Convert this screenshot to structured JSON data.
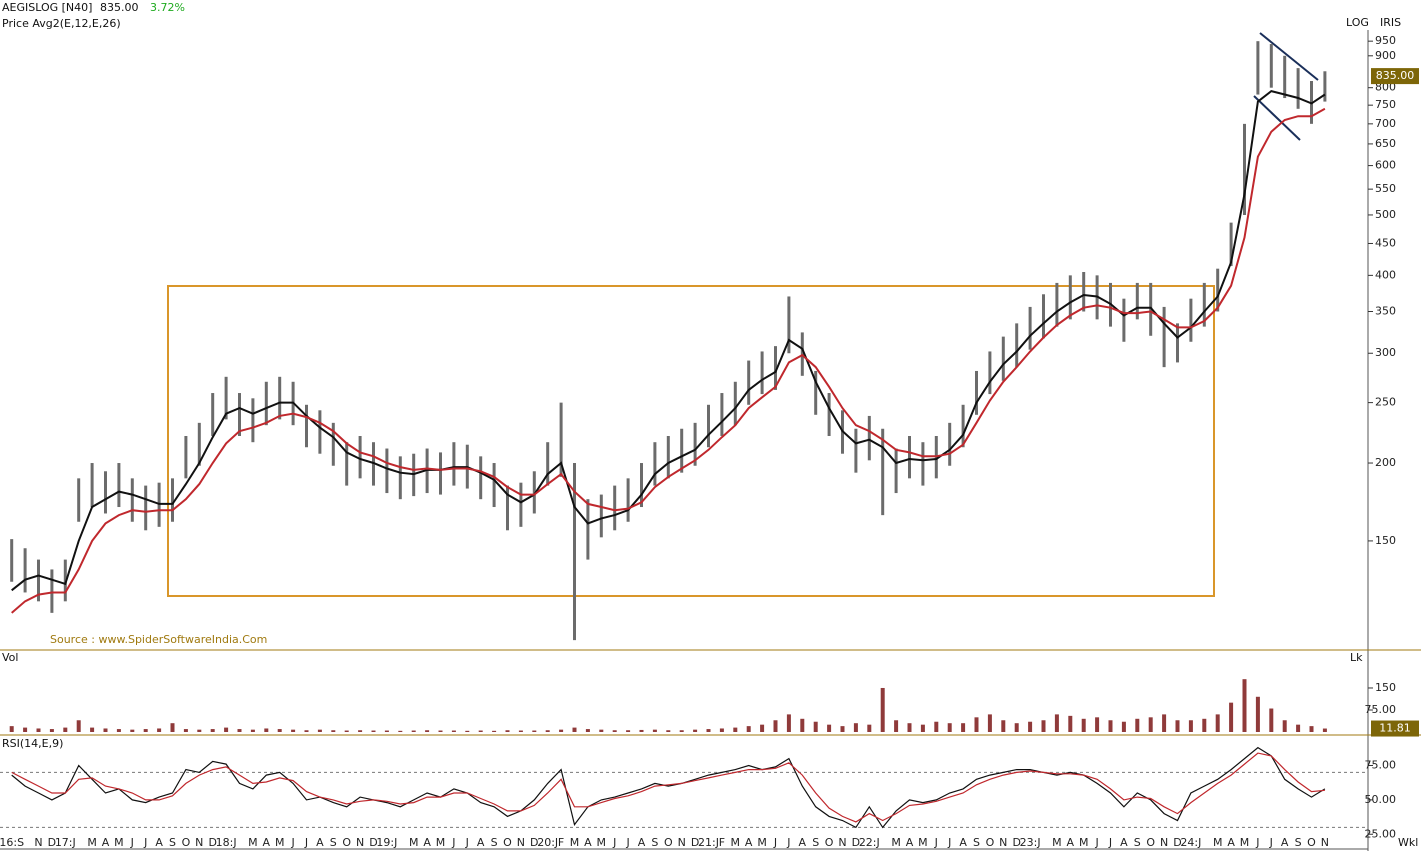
{
  "header": {
    "symbol": "AEGISLOG [N40]",
    "change": "3.72%",
    "indicator": "Price  Avg2(E,12,E,26)",
    "scale": "LOG",
    "tool": "IRIS",
    "source": "Source : www.SpiderSoftwareIndia.Com",
    "period": "Wkl"
  },
  "chart_data": [
    {
      "type": "hilo",
      "title": "Price",
      "last_price": {
        "value": 835,
        "label": "835.00"
      },
      "log_scale": true,
      "bar_color": "#6b6b6b",
      "categories": [
        "16:S",
        null,
        "N",
        "D",
        "17:J",
        null,
        "M",
        "A",
        "M",
        "J",
        "J",
        "A",
        "S",
        "O",
        "N",
        "D",
        "18:J",
        null,
        "M",
        "A",
        "M",
        "J",
        "J",
        "A",
        "S",
        "O",
        "N",
        "D",
        "19:J",
        null,
        "M",
        "A",
        "M",
        "J",
        "J",
        "A",
        "S",
        "O",
        "N",
        "D",
        "20:J",
        "F",
        "M",
        "A",
        "M",
        "J",
        "J",
        "A",
        "S",
        "O",
        "N",
        "D",
        "21:J",
        "F",
        "M",
        "A",
        "M",
        "J",
        "J",
        "A",
        "S",
        "O",
        "N",
        "D",
        "22:J",
        null,
        "M",
        "A",
        "M",
        "J",
        "J",
        "A",
        "S",
        "O",
        "N",
        "D",
        "23:J",
        null,
        "M",
        "A",
        "M",
        "J",
        "J",
        "A",
        "S",
        "O",
        "N",
        "D",
        "24:J",
        null,
        "M",
        "A",
        "M",
        "J",
        "J",
        "A",
        "S",
        "O",
        "N"
      ],
      "high": [
        151,
        146,
        140,
        135,
        140,
        189,
        200,
        194,
        200,
        189,
        184,
        186,
        189,
        221,
        232,
        259,
        275,
        259,
        254,
        270,
        275,
        270,
        248,
        243,
        232,
        216,
        221,
        216,
        211,
        205,
        207,
        211,
        208,
        216,
        214,
        205,
        200,
        184,
        186,
        194,
        216,
        250,
        200,
        175,
        178,
        184,
        189,
        200,
        216,
        221,
        227,
        232,
        248,
        259,
        270,
        292,
        302,
        308,
        370,
        324,
        281,
        259,
        243,
        227,
        238,
        227,
        211,
        221,
        216,
        221,
        232,
        248,
        281,
        302,
        319,
        335,
        356,
        373,
        389,
        400,
        405,
        400,
        389,
        367,
        389,
        389,
        356,
        335,
        367,
        389,
        410,
        486,
        700,
        950,
        940,
        900,
        860,
        820,
        850
      ],
      "low": [
        129,
        124,
        120,
        115,
        120,
        161,
        170,
        166,
        170,
        161,
        156,
        158,
        161,
        189,
        198,
        221,
        235,
        221,
        216,
        230,
        235,
        230,
        212,
        207,
        198,
        184,
        189,
        184,
        179,
        175,
        177,
        179,
        178,
        184,
        182,
        175,
        170,
        156,
        158,
        166,
        184,
        190,
        104,
        140,
        152,
        156,
        161,
        170,
        184,
        189,
        193,
        198,
        212,
        221,
        230,
        248,
        258,
        262,
        300,
        276,
        239,
        221,
        207,
        193,
        202,
        165,
        179,
        189,
        184,
        189,
        198,
        212,
        239,
        258,
        271,
        285,
        304,
        317,
        331,
        340,
        350,
        340,
        331,
        313,
        340,
        320,
        285,
        290,
        313,
        331,
        350,
        414,
        500,
        780,
        800,
        770,
        740,
        700,
        760
      ],
      "averages": [
        {
          "color": "#111111",
          "values": [
            125,
            130,
            132,
            130,
            128,
            150,
            170,
            175,
            180,
            178,
            175,
            172,
            172,
            185,
            200,
            220,
            240,
            245,
            240,
            245,
            250,
            250,
            238,
            228,
            220,
            208,
            203,
            200,
            196,
            193,
            192,
            195,
            195,
            197,
            197,
            193,
            188,
            178,
            173,
            178,
            192,
            200,
            170,
            160,
            163,
            165,
            168,
            178,
            192,
            200,
            205,
            210,
            222,
            233,
            245,
            262,
            272,
            280,
            315,
            305,
            270,
            245,
            225,
            215,
            218,
            212,
            200,
            203,
            202,
            203,
            210,
            222,
            250,
            270,
            288,
            302,
            320,
            335,
            350,
            362,
            372,
            370,
            360,
            345,
            355,
            355,
            335,
            318,
            330,
            350,
            370,
            420,
            540,
            760,
            790,
            780,
            770,
            755,
            780
          ]
        },
        {
          "color": "#c0282d",
          "values": [
            115,
            120,
            123,
            124,
            124,
            135,
            150,
            160,
            165,
            168,
            167,
            168,
            168,
            175,
            185,
            200,
            215,
            225,
            228,
            232,
            238,
            240,
            237,
            232,
            225,
            215,
            208,
            205,
            200,
            197,
            195,
            196,
            195,
            196,
            196,
            194,
            190,
            183,
            178,
            178,
            185,
            192,
            180,
            172,
            170,
            168,
            169,
            173,
            183,
            190,
            196,
            202,
            210,
            220,
            230,
            245,
            255,
            265,
            290,
            298,
            285,
            265,
            245,
            230,
            225,
            218,
            210,
            208,
            205,
            205,
            207,
            214,
            232,
            252,
            270,
            285,
            302,
            318,
            333,
            345,
            355,
            358,
            355,
            348,
            348,
            350,
            340,
            330,
            330,
            338,
            355,
            385,
            460,
            620,
            680,
            710,
            720,
            720,
            740
          ]
        }
      ],
      "ylim": [
        101,
        990
      ],
      "yticks": [
        150,
        200,
        250,
        300,
        350,
        400,
        450,
        500,
        550,
        600,
        650,
        700,
        750,
        800,
        900,
        950
      ]
    },
    {
      "type": "bar",
      "title": "Vol",
      "unit": "Lk",
      "color": "#8f3a3a",
      "values": [
        20,
        15,
        12,
        10,
        15,
        40,
        15,
        12,
        10,
        8,
        10,
        12,
        30,
        10,
        8,
        10,
        15,
        10,
        8,
        12,
        10,
        8,
        6,
        8,
        6,
        5,
        6,
        5,
        5,
        4,
        5,
        6,
        5,
        5,
        4,
        5,
        4,
        6,
        5,
        5,
        6,
        8,
        15,
        10,
        8,
        6,
        6,
        7,
        8,
        6,
        6,
        8,
        10,
        12,
        15,
        20,
        25,
        40,
        60,
        45,
        35,
        25,
        20,
        30,
        25,
        150,
        40,
        30,
        25,
        35,
        30,
        30,
        50,
        60,
        40,
        30,
        35,
        40,
        60,
        55,
        45,
        50,
        40,
        35,
        45,
        50,
        60,
        40,
        40,
        45,
        60,
        100,
        180,
        120,
        80,
        40,
        25,
        20,
        11.81
      ],
      "ylim": [
        0,
        276
      ],
      "yticks": [
        {
          "value": 75,
          "label": "75.00"
        },
        150
      ]
    },
    {
      "type": "line",
      "title": "RSI(14,E,9)",
      "series": [
        {
          "color": "#111111",
          "values": [
            68,
            60,
            55,
            50,
            55,
            75,
            65,
            55,
            58,
            50,
            48,
            52,
            55,
            72,
            70,
            78,
            76,
            62,
            58,
            68,
            70,
            62,
            50,
            52,
            48,
            45,
            52,
            50,
            48,
            45,
            50,
            55,
            52,
            58,
            55,
            48,
            45,
            38,
            42,
            50,
            62,
            72,
            32,
            45,
            50,
            52,
            55,
            58,
            62,
            60,
            62,
            65,
            68,
            70,
            72,
            75,
            72,
            74,
            80,
            60,
            45,
            38,
            35,
            30,
            45,
            30,
            42,
            50,
            48,
            50,
            55,
            58,
            65,
            68,
            70,
            72,
            72,
            70,
            68,
            70,
            68,
            62,
            55,
            45,
            55,
            50,
            40,
            35,
            55,
            60,
            65,
            72,
            80,
            88,
            82,
            65,
            58,
            52,
            58
          ]
        },
        {
          "color": "#c0282d",
          "values": [
            70,
            65,
            60,
            55,
            55,
            65,
            66,
            60,
            58,
            55,
            50,
            50,
            53,
            62,
            68,
            72,
            74,
            68,
            62,
            63,
            66,
            64,
            56,
            52,
            50,
            47,
            49,
            50,
            49,
            47,
            48,
            52,
            52,
            55,
            55,
            51,
            47,
            42,
            42,
            46,
            55,
            65,
            45,
            45,
            48,
            51,
            53,
            56,
            60,
            61,
            62,
            64,
            66,
            68,
            70,
            72,
            72,
            73,
            77,
            68,
            55,
            44,
            38,
            34,
            40,
            35,
            40,
            46,
            47,
            49,
            52,
            55,
            61,
            65,
            68,
            70,
            71,
            70,
            69,
            69,
            68,
            65,
            58,
            50,
            52,
            51,
            45,
            40,
            48,
            55,
            62,
            68,
            76,
            84,
            82,
            72,
            63,
            56,
            57
          ]
        }
      ],
      "reference_lines": [
        30,
        70
      ],
      "ylim": [
        15,
        95
      ],
      "yticks": [
        {
          "value": 25,
          "label": "25.00"
        },
        {
          "value": 50,
          "label": "50.00"
        },
        {
          "value": 75,
          "label": "75.00"
        }
      ]
    }
  ]
}
